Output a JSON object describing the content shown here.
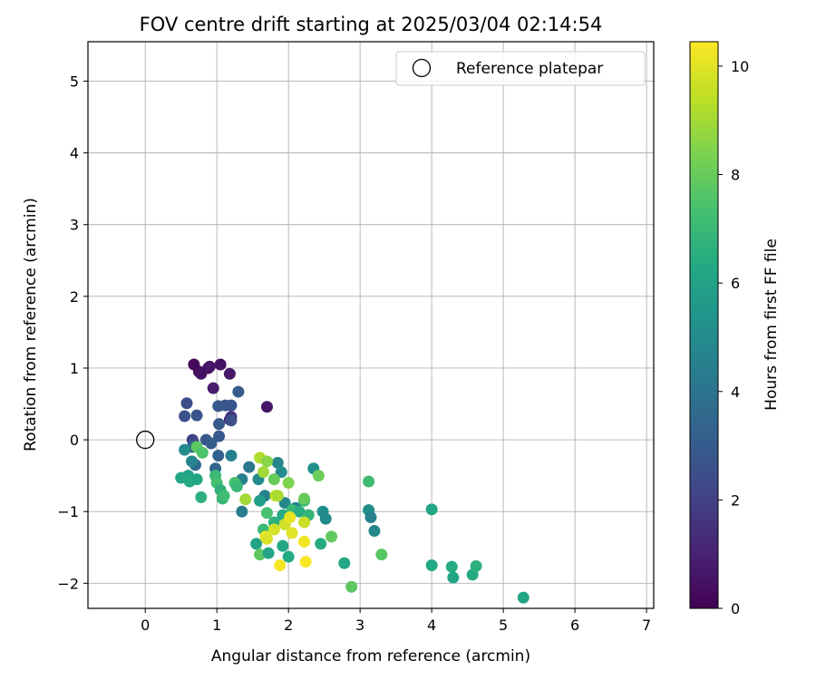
{
  "chart_data": {
    "type": "scatter",
    "title": "FOV centre drift starting at 2025/03/04 02:14:54",
    "xlabel": "Angular distance from reference (arcmin)",
    "ylabel": "Rotation from reference (arcmin)",
    "xlim": [
      -0.8,
      7.1
    ],
    "ylim": [
      -2.35,
      5.55
    ],
    "xticks": [
      0,
      1,
      2,
      3,
      4,
      5,
      6,
      7
    ],
    "yticks": [
      -2,
      -1,
      0,
      1,
      2,
      3,
      4,
      5
    ],
    "xtick_labels": [
      "0",
      "1",
      "2",
      "3",
      "4",
      "5",
      "6",
      "7"
    ],
    "ytick_labels": [
      "−2",
      "−1",
      "0",
      "1",
      "2",
      "3",
      "4",
      "5"
    ],
    "grid": true,
    "legend": {
      "position": "top-right",
      "entries": [
        "Reference platepar"
      ]
    },
    "reference_point": {
      "x": 0,
      "y": 0,
      "marker": "open-circle"
    },
    "colorbar": {
      "label": "Hours from first FF file",
      "colormap": "viridis",
      "range": [
        0,
        10.45
      ],
      "ticks": [
        0,
        2,
        4,
        6,
        8,
        10
      ],
      "tick_labels": [
        "0",
        "2",
        "4",
        "6",
        "8",
        "10"
      ]
    },
    "points": [
      {
        "x": 0.68,
        "y": 1.05,
        "h": 0.2
      },
      {
        "x": 0.75,
        "y": 0.95,
        "h": 0.3
      },
      {
        "x": 0.78,
        "y": 0.92,
        "h": 0.5
      },
      {
        "x": 0.88,
        "y": 1.0,
        "h": 0.4
      },
      {
        "x": 0.9,
        "y": 1.02,
        "h": 0.6
      },
      {
        "x": 1.05,
        "y": 1.05,
        "h": 0.5
      },
      {
        "x": 1.18,
        "y": 0.92,
        "h": 0.7
      },
      {
        "x": 0.95,
        "y": 0.72,
        "h": 0.8
      },
      {
        "x": 1.7,
        "y": 0.46,
        "h": 0.6
      },
      {
        "x": 1.18,
        "y": 0.28,
        "h": 1.0
      },
      {
        "x": 1.2,
        "y": 0.32,
        "h": 1.5
      },
      {
        "x": 0.58,
        "y": 0.51,
        "h": 2.5
      },
      {
        "x": 0.55,
        "y": 0.33,
        "h": 2.6
      },
      {
        "x": 0.72,
        "y": 0.34,
        "h": 2.7
      },
      {
        "x": 1.3,
        "y": 0.67,
        "h": 3.0
      },
      {
        "x": 1.02,
        "y": 0.47,
        "h": 2.9
      },
      {
        "x": 1.12,
        "y": 0.48,
        "h": 2.8
      },
      {
        "x": 1.2,
        "y": 0.48,
        "h": 2.7
      },
      {
        "x": 1.03,
        "y": 0.22,
        "h": 2.9
      },
      {
        "x": 1.2,
        "y": 0.27,
        "h": 2.6
      },
      {
        "x": 0.66,
        "y": 0.0,
        "h": 2.0
      },
      {
        "x": 0.68,
        "y": -0.05,
        "h": 2.4
      },
      {
        "x": 0.85,
        "y": 0.0,
        "h": 2.8
      },
      {
        "x": 0.92,
        "y": -0.05,
        "h": 3.1
      },
      {
        "x": 1.03,
        "y": 0.05,
        "h": 2.9
      },
      {
        "x": 0.66,
        "y": -0.1,
        "h": 3.4
      },
      {
        "x": 0.7,
        "y": -0.35,
        "h": 3.5
      },
      {
        "x": 1.02,
        "y": -0.22,
        "h": 3.2
      },
      {
        "x": 0.98,
        "y": -0.4,
        "h": 3.4
      },
      {
        "x": 1.2,
        "y": -0.22,
        "h": 4.5
      },
      {
        "x": 0.55,
        "y": -0.14,
        "h": 5.0
      },
      {
        "x": 0.65,
        "y": -0.3,
        "h": 4.8
      },
      {
        "x": 1.45,
        "y": -0.38,
        "h": 4.2
      },
      {
        "x": 1.35,
        "y": -0.55,
        "h": 4.5
      },
      {
        "x": 1.35,
        "y": -1.0,
        "h": 4.3
      },
      {
        "x": 1.58,
        "y": -0.55,
        "h": 4.9
      },
      {
        "x": 1.67,
        "y": -0.78,
        "h": 4.6
      },
      {
        "x": 1.85,
        "y": -0.32,
        "h": 4.7
      },
      {
        "x": 1.9,
        "y": -0.45,
        "h": 5.0
      },
      {
        "x": 1.95,
        "y": -0.88,
        "h": 4.8
      },
      {
        "x": 2.1,
        "y": -0.95,
        "h": 4.6
      },
      {
        "x": 2.35,
        "y": -0.4,
        "h": 5.2
      },
      {
        "x": 2.48,
        "y": -1.0,
        "h": 5.1
      },
      {
        "x": 2.52,
        "y": -1.1,
        "h": 4.9
      },
      {
        "x": 3.12,
        "y": -0.98,
        "h": 5.1
      },
      {
        "x": 3.15,
        "y": -1.08,
        "h": 4.6
      },
      {
        "x": 3.2,
        "y": -1.27,
        "h": 4.8
      },
      {
        "x": 0.5,
        "y": -0.53,
        "h": 6.2
      },
      {
        "x": 0.6,
        "y": -0.5,
        "h": 6.0
      },
      {
        "x": 0.62,
        "y": -0.58,
        "h": 6.3
      },
      {
        "x": 0.72,
        "y": -0.55,
        "h": 6.1
      },
      {
        "x": 0.78,
        "y": -0.8,
        "h": 6.6
      },
      {
        "x": 0.98,
        "y": -0.5,
        "h": 7.0
      },
      {
        "x": 1.0,
        "y": -0.6,
        "h": 7.3
      },
      {
        "x": 1.05,
        "y": -0.7,
        "h": 6.7
      },
      {
        "x": 1.08,
        "y": -0.82,
        "h": 6.8
      },
      {
        "x": 1.1,
        "y": -0.78,
        "h": 7.2
      },
      {
        "x": 1.25,
        "y": -0.6,
        "h": 7.4
      },
      {
        "x": 1.28,
        "y": -0.65,
        "h": 7.0
      },
      {
        "x": 1.6,
        "y": -0.85,
        "h": 5.8
      },
      {
        "x": 1.55,
        "y": -1.45,
        "h": 6.0
      },
      {
        "x": 1.6,
        "y": -1.6,
        "h": 7.8
      },
      {
        "x": 1.65,
        "y": -1.25,
        "h": 7.0
      },
      {
        "x": 1.7,
        "y": -1.02,
        "h": 7.4
      },
      {
        "x": 1.72,
        "y": -1.58,
        "h": 6.1
      },
      {
        "x": 1.8,
        "y": -1.15,
        "h": 6.6
      },
      {
        "x": 1.92,
        "y": -1.05,
        "h": 6.4
      },
      {
        "x": 1.92,
        "y": -1.48,
        "h": 6.2
      },
      {
        "x": 2.0,
        "y": -1.63,
        "h": 6.3
      },
      {
        "x": 2.05,
        "y": -0.98,
        "h": 7.0
      },
      {
        "x": 2.15,
        "y": -1.0,
        "h": 6.5
      },
      {
        "x": 2.22,
        "y": -0.85,
        "h": 7.1
      },
      {
        "x": 2.28,
        "y": -1.05,
        "h": 6.8
      },
      {
        "x": 2.45,
        "y": -1.45,
        "h": 6.4
      },
      {
        "x": 2.78,
        "y": -1.72,
        "h": 6.2
      },
      {
        "x": 3.12,
        "y": -0.58,
        "h": 7.2
      },
      {
        "x": 4.0,
        "y": -0.97,
        "h": 6.2
      },
      {
        "x": 4.0,
        "y": -1.75,
        "h": 6.3
      },
      {
        "x": 4.28,
        "y": -1.77,
        "h": 6.4
      },
      {
        "x": 4.3,
        "y": -1.92,
        "h": 6.2
      },
      {
        "x": 4.57,
        "y": -1.88,
        "h": 6.3
      },
      {
        "x": 4.62,
        "y": -1.76,
        "h": 6.6
      },
      {
        "x": 5.28,
        "y": -2.2,
        "h": 6.2
      },
      {
        "x": 0.72,
        "y": -0.1,
        "h": 7.8
      },
      {
        "x": 0.8,
        "y": -0.18,
        "h": 7.5
      },
      {
        "x": 1.4,
        "y": -0.83,
        "h": 9.0
      },
      {
        "x": 1.6,
        "y": -0.25,
        "h": 9.2
      },
      {
        "x": 1.7,
        "y": -0.3,
        "h": 8.6
      },
      {
        "x": 1.65,
        "y": -0.45,
        "h": 9.0
      },
      {
        "x": 1.8,
        "y": -0.55,
        "h": 8.0
      },
      {
        "x": 1.82,
        "y": -0.78,
        "h": 9.5
      },
      {
        "x": 1.85,
        "y": -0.78,
        "h": 9.1
      },
      {
        "x": 2.0,
        "y": -0.6,
        "h": 8.4
      },
      {
        "x": 2.22,
        "y": -0.82,
        "h": 8.0
      },
      {
        "x": 2.42,
        "y": -0.5,
        "h": 8.1
      },
      {
        "x": 2.6,
        "y": -1.35,
        "h": 7.9
      },
      {
        "x": 2.88,
        "y": -2.05,
        "h": 7.8
      },
      {
        "x": 3.3,
        "y": -1.6,
        "h": 7.7
      },
      {
        "x": 1.68,
        "y": -1.35,
        "h": 10.2
      },
      {
        "x": 1.7,
        "y": -1.38,
        "h": 9.9
      },
      {
        "x": 1.8,
        "y": -1.25,
        "h": 9.8
      },
      {
        "x": 1.88,
        "y": -1.75,
        "h": 10.3
      },
      {
        "x": 1.95,
        "y": -1.18,
        "h": 9.7
      },
      {
        "x": 2.02,
        "y": -1.08,
        "h": 10.1
      },
      {
        "x": 2.05,
        "y": -1.3,
        "h": 10.0
      },
      {
        "x": 2.22,
        "y": -1.15,
        "h": 9.6
      },
      {
        "x": 2.22,
        "y": -1.42,
        "h": 10.2
      },
      {
        "x": 2.24,
        "y": -1.7,
        "h": 10.4
      }
    ]
  }
}
